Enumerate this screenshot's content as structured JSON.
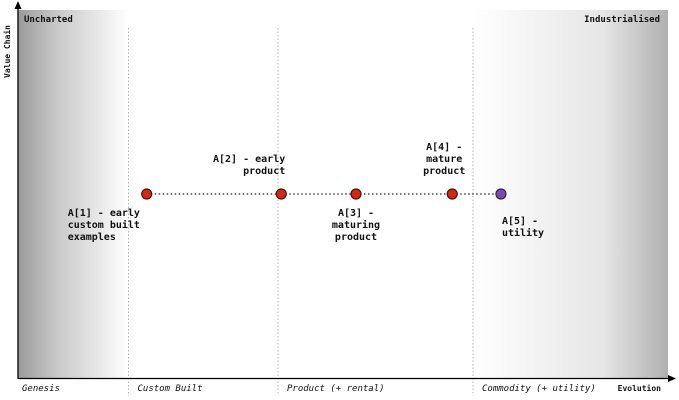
{
  "map": {
    "corner_left": "Uncharted",
    "corner_right": "Industrialised",
    "y_axis_label": "Value Chain",
    "x_axis_label": "Evolution",
    "stages": [
      "Genesis",
      "Custom Built",
      "Product (+ rental)",
      "Commodity (+ utility)"
    ],
    "stage_boundaries": [
      0.17,
      0.4,
      0.7
    ],
    "colors": {
      "component": "#cc2a1a",
      "component_stroke": "#5a0e08",
      "final_component": "#7b4fa8",
      "final_component_stroke": "#3a1f58",
      "link": "#222222",
      "axis": "#000000"
    },
    "components": [
      {
        "id": "A1",
        "label_lines": [
          "A[1] - early",
          "custom built",
          "examples"
        ],
        "evolution": 0.198,
        "visibility": 0.5,
        "label_position": "below-left",
        "color": "component"
      },
      {
        "id": "A2",
        "label_lines": [
          "A[2] - early",
          "product"
        ],
        "evolution": 0.405,
        "visibility": 0.5,
        "label_position": "above-left",
        "color": "component"
      },
      {
        "id": "A3",
        "label_lines": [
          "A[3] -",
          "maturing",
          "product"
        ],
        "evolution": 0.52,
        "visibility": 0.5,
        "label_position": "below",
        "color": "component"
      },
      {
        "id": "A4",
        "label_lines": [
          "A[4] -",
          "mature",
          "product"
        ],
        "evolution": 0.668,
        "visibility": 0.5,
        "label_position": "above",
        "color": "component"
      },
      {
        "id": "A5",
        "label_lines": [
          "A[5] -",
          "utility"
        ],
        "evolution": 0.743,
        "visibility": 0.5,
        "label_position": "below-right",
        "color": "final_component"
      }
    ],
    "links": [
      [
        "A1",
        "A2"
      ],
      [
        "A2",
        "A3"
      ],
      [
        "A3",
        "A4"
      ],
      [
        "A4",
        "A5"
      ]
    ]
  }
}
